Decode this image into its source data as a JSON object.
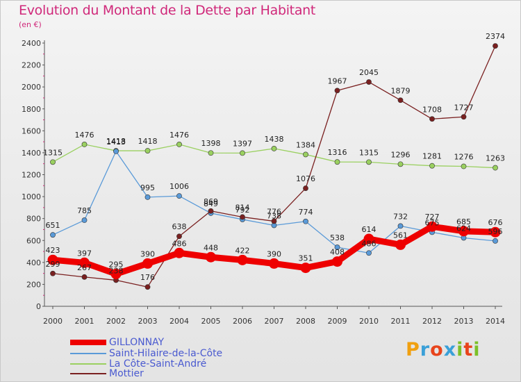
{
  "title": "Evolution du Montant de la Dette par Habitant",
  "unit": "(en €)",
  "logo": "Proxiti",
  "chart_data": {
    "type": "line",
    "title": "Evolution du Montant de la Dette par Habitant",
    "ylabel": "(en €)",
    "ylim": [
      0,
      2400
    ],
    "yticks": [
      0,
      200,
      400,
      600,
      800,
      1000,
      1200,
      1400,
      1600,
      1800,
      2000,
      2200,
      2400
    ],
    "grid": false,
    "legend_position": "bottom-left",
    "x": [
      2000,
      2001,
      2002,
      2003,
      2004,
      2005,
      2006,
      2007,
      2008,
      2009,
      2010,
      2011,
      2012,
      2013,
      2014
    ],
    "series": [
      {
        "name": "GILLONNAY",
        "color": "#ee0000",
        "values": [
          423,
          397,
          295,
          390,
          486,
          448,
          422,
          390,
          351,
          408,
          614,
          561,
          727,
          685,
          676
        ]
      },
      {
        "name": "Saint-Hilaire-de-la-Côte",
        "color": "#5a9ad8",
        "values": [
          651,
          785,
          1413,
          995,
          1006,
          849,
          792,
          738,
          774,
          538,
          486,
          732,
          675,
          624,
          596
        ]
      },
      {
        "name": "La Côte-Saint-André",
        "color": "#9ad060",
        "values": [
          1315,
          1476,
          1418,
          1418,
          1476,
          1398,
          1397,
          1438,
          1384,
          1316,
          1315,
          1296,
          1281,
          1276,
          1263
        ]
      },
      {
        "name": "Mottier",
        "color": "#7a2020",
        "values": [
          299,
          267,
          238,
          176,
          638,
          869,
          814,
          776,
          1076,
          1967,
          2045,
          1879,
          1708,
          1727,
          2374
        ]
      }
    ]
  }
}
